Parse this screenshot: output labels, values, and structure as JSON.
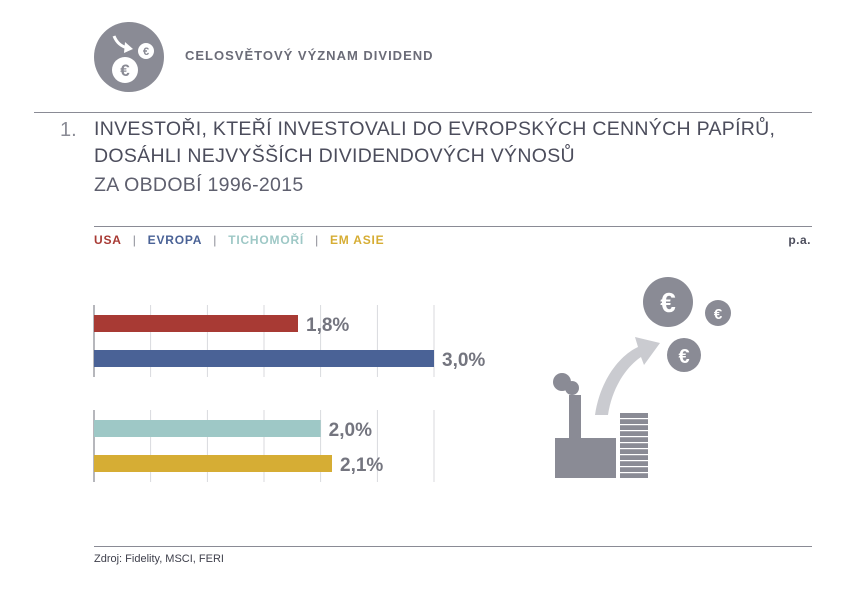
{
  "header": {
    "title": "CELOSVĚTOVÝ VÝZNAM DIVIDEND",
    "icon": "euro-coins-arrow-icon"
  },
  "headline": {
    "number": "1.",
    "line1": "INVESTOŘI, KTEŘÍ INVESTOVALI DO EVROPSKÝCH CENNÝCH PAPÍRŮ,",
    "line2": "DOSÁHLI NEJVYŠŠÍCH DIVIDENDOVÝCH VÝNOSŮ",
    "line3": "ZA OBDOBÍ 1996-2015"
  },
  "legend": {
    "items": [
      {
        "label": "USA",
        "color": "#a83a34"
      },
      {
        "label": "EVROPA",
        "color": "#4a6296"
      },
      {
        "label": "TICHOMOŘÍ",
        "color": "#9ec8c6"
      },
      {
        "label": "EM ASIE",
        "color": "#d6ad34"
      }
    ],
    "separator": "|"
  },
  "unit": "p.a.",
  "chart_data": {
    "type": "bar",
    "orientation": "horizontal",
    "categories": [
      "USA",
      "EVROPA",
      "TICHOMOŘÍ",
      "EM ASIE"
    ],
    "values": [
      1.8,
      3.0,
      2.0,
      2.1
    ],
    "labels": [
      "1,8%",
      "3,0%",
      "2,0%",
      "2,1%"
    ],
    "colors": [
      "#a83a34",
      "#4a6296",
      "#9ec8c6",
      "#d6ad34"
    ],
    "groups": [
      [
        0,
        1
      ],
      [
        2,
        3
      ]
    ],
    "xlim": [
      0,
      3.0
    ],
    "grid": true
  },
  "illustration": {
    "icon": "factory-money-growth-icon"
  },
  "source": "Zdroj: Fidelity, MSCI, FERI"
}
